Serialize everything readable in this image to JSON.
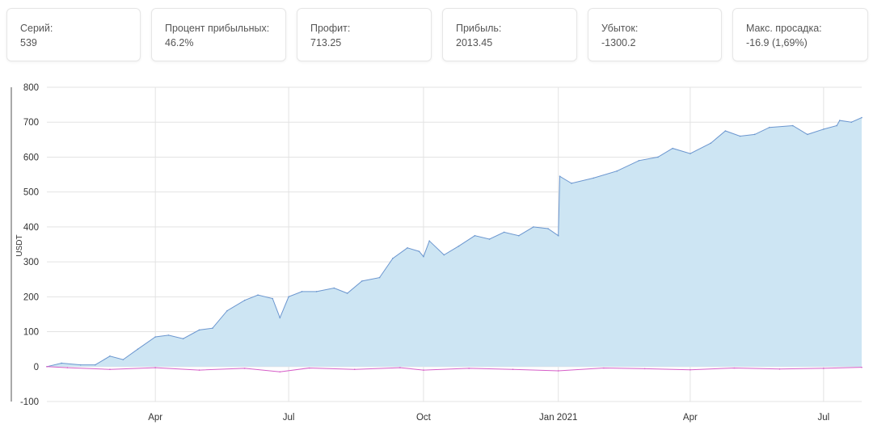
{
  "stats": [
    {
      "label": "Серий:",
      "value": "539"
    },
    {
      "label": "Процент прибыльных:",
      "value": "46.2%"
    },
    {
      "label": "Профит:",
      "value": "713.25"
    },
    {
      "label": "Прибыль:",
      "value": "2013.45"
    },
    {
      "label": "Убыток:",
      "value": "-1300.2"
    },
    {
      "label": "Макс. просадка:",
      "value": "-16.9 (1,69%)"
    }
  ],
  "colors": {
    "line": "#6b96cf",
    "fill": "#cde5f3",
    "drawdown": "#d65ec8",
    "grid": "#e3e3e3"
  },
  "chart_data": {
    "type": "area",
    "ylabel": "USDT",
    "ylim": [
      -100,
      800
    ],
    "yticks": [
      "800",
      "700",
      "600",
      "500",
      "400",
      "300",
      "200",
      "100",
      "0",
      "-100"
    ],
    "x_range": [
      "2020-01-18",
      "2021-07-27"
    ],
    "xticks": [
      {
        "date": "2020-04-01",
        "label": "Apr"
      },
      {
        "date": "2020-07-01",
        "label": "Jul"
      },
      {
        "date": "2020-10-01",
        "label": "Oct"
      },
      {
        "date": "2021-01-01",
        "label": "Jan 2021"
      },
      {
        "date": "2021-04-01",
        "label": "Apr"
      },
      {
        "date": "2021-07-01",
        "label": "Jul"
      }
    ],
    "grid": true,
    "series": [
      {
        "values": [
          [
            "2020-01-18",
            0
          ],
          [
            "2020-01-28",
            10
          ],
          [
            "2020-02-10",
            5
          ],
          [
            "2020-02-20",
            5
          ],
          [
            "2020-03-01",
            30
          ],
          [
            "2020-03-10",
            20
          ],
          [
            "2020-03-20",
            50
          ],
          [
            "2020-04-01",
            85
          ],
          [
            "2020-04-10",
            90
          ],
          [
            "2020-04-20",
            80
          ],
          [
            "2020-05-01",
            105
          ],
          [
            "2020-05-10",
            110
          ],
          [
            "2020-05-20",
            160
          ],
          [
            "2020-06-01",
            190
          ],
          [
            "2020-06-10",
            205
          ],
          [
            "2020-06-20",
            195
          ],
          [
            "2020-06-25",
            140
          ],
          [
            "2020-07-01",
            200
          ],
          [
            "2020-07-10",
            215
          ],
          [
            "2020-07-20",
            215
          ],
          [
            "2020-08-01",
            225
          ],
          [
            "2020-08-10",
            210
          ],
          [
            "2020-08-20",
            245
          ],
          [
            "2020-09-01",
            255
          ],
          [
            "2020-09-10",
            310
          ],
          [
            "2020-09-20",
            340
          ],
          [
            "2020-09-28",
            330
          ],
          [
            "2020-10-01",
            315
          ],
          [
            "2020-10-05",
            360
          ],
          [
            "2020-10-15",
            320
          ],
          [
            "2020-10-25",
            345
          ],
          [
            "2020-11-05",
            375
          ],
          [
            "2020-11-15",
            365
          ],
          [
            "2020-11-25",
            385
          ],
          [
            "2020-12-05",
            375
          ],
          [
            "2020-12-15",
            400
          ],
          [
            "2020-12-25",
            395
          ],
          [
            "2021-01-01",
            375
          ],
          [
            "2021-01-02",
            545
          ],
          [
            "2021-01-10",
            525
          ],
          [
            "2021-01-25",
            540
          ],
          [
            "2021-02-10",
            560
          ],
          [
            "2021-02-25",
            590
          ],
          [
            "2021-03-10",
            600
          ],
          [
            "2021-03-20",
            625
          ],
          [
            "2021-04-01",
            610
          ],
          [
            "2021-04-15",
            640
          ],
          [
            "2021-04-25",
            675
          ],
          [
            "2021-05-05",
            660
          ],
          [
            "2021-05-15",
            665
          ],
          [
            "2021-05-25",
            685
          ],
          [
            "2021-06-10",
            690
          ],
          [
            "2021-06-20",
            665
          ],
          [
            "2021-07-01",
            680
          ],
          [
            "2021-07-10",
            690
          ],
          [
            "2021-07-12",
            705
          ],
          [
            "2021-07-20",
            700
          ],
          [
            "2021-07-27",
            713
          ]
        ]
      },
      {
        "values": [
          [
            "2020-01-18",
            0
          ],
          [
            "2020-02-01",
            -3
          ],
          [
            "2020-03-01",
            -8
          ],
          [
            "2020-04-01",
            -3
          ],
          [
            "2020-05-01",
            -10
          ],
          [
            "2020-06-01",
            -5
          ],
          [
            "2020-06-25",
            -15
          ],
          [
            "2020-07-15",
            -4
          ],
          [
            "2020-08-15",
            -8
          ],
          [
            "2020-09-15",
            -3
          ],
          [
            "2020-10-01",
            -10
          ],
          [
            "2020-11-01",
            -5
          ],
          [
            "2020-12-01",
            -8
          ],
          [
            "2021-01-01",
            -12
          ],
          [
            "2021-02-01",
            -4
          ],
          [
            "2021-03-01",
            -6
          ],
          [
            "2021-04-01",
            -9
          ],
          [
            "2021-05-01",
            -4
          ],
          [
            "2021-06-01",
            -7
          ],
          [
            "2021-07-01",
            -5
          ],
          [
            "2021-07-27",
            -2
          ]
        ]
      }
    ]
  }
}
